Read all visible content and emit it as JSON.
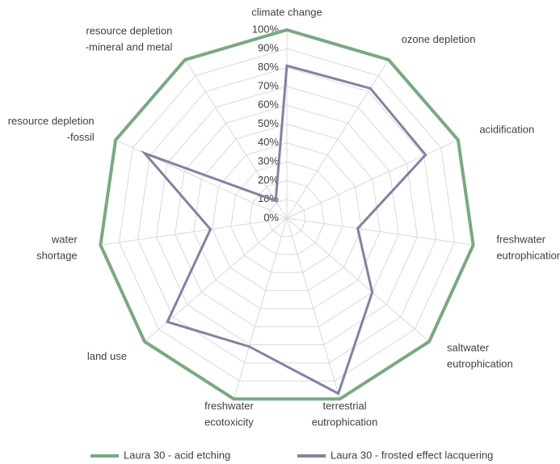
{
  "chart_data": {
    "type": "radar",
    "categories": [
      "climate change",
      "ozone depletion",
      "acidification",
      "freshwater\neutrophication",
      "saltwater\neutrophication",
      "terrestrial\neutrophication",
      "freshwater\necotoxicity",
      "land use",
      "water\nshortage",
      "resource depletion\n-fossil",
      "resource depletion\n-mineral and metal"
    ],
    "series": [
      {
        "name": "Laura 30 - acid etching",
        "color": "#7aa882",
        "values": [
          100,
          100,
          100,
          100,
          100,
          100,
          100,
          100,
          100,
          100,
          100
        ]
      },
      {
        "name": "Laura 30 - frosted effect lacquering",
        "color": "#8083a0",
        "values": [
          81,
          82,
          81,
          38,
          60,
          97,
          71,
          84,
          41,
          83,
          11
        ]
      }
    ],
    "ylim": [
      0,
      100
    ],
    "yticks": [
      {
        "value": 0,
        "label": "0%"
      },
      {
        "value": 10,
        "label": "10%"
      },
      {
        "value": 20,
        "label": "20%"
      },
      {
        "value": 30,
        "label": "30%"
      },
      {
        "value": 40,
        "label": "40%"
      },
      {
        "value": 50,
        "label": "50%"
      },
      {
        "value": 60,
        "label": "60%"
      },
      {
        "value": 70,
        "label": "70%"
      },
      {
        "value": 80,
        "label": "80%"
      },
      {
        "value": 90,
        "label": "90%"
      },
      {
        "value": 100,
        "label": "100%"
      }
    ],
    "grid": true
  }
}
